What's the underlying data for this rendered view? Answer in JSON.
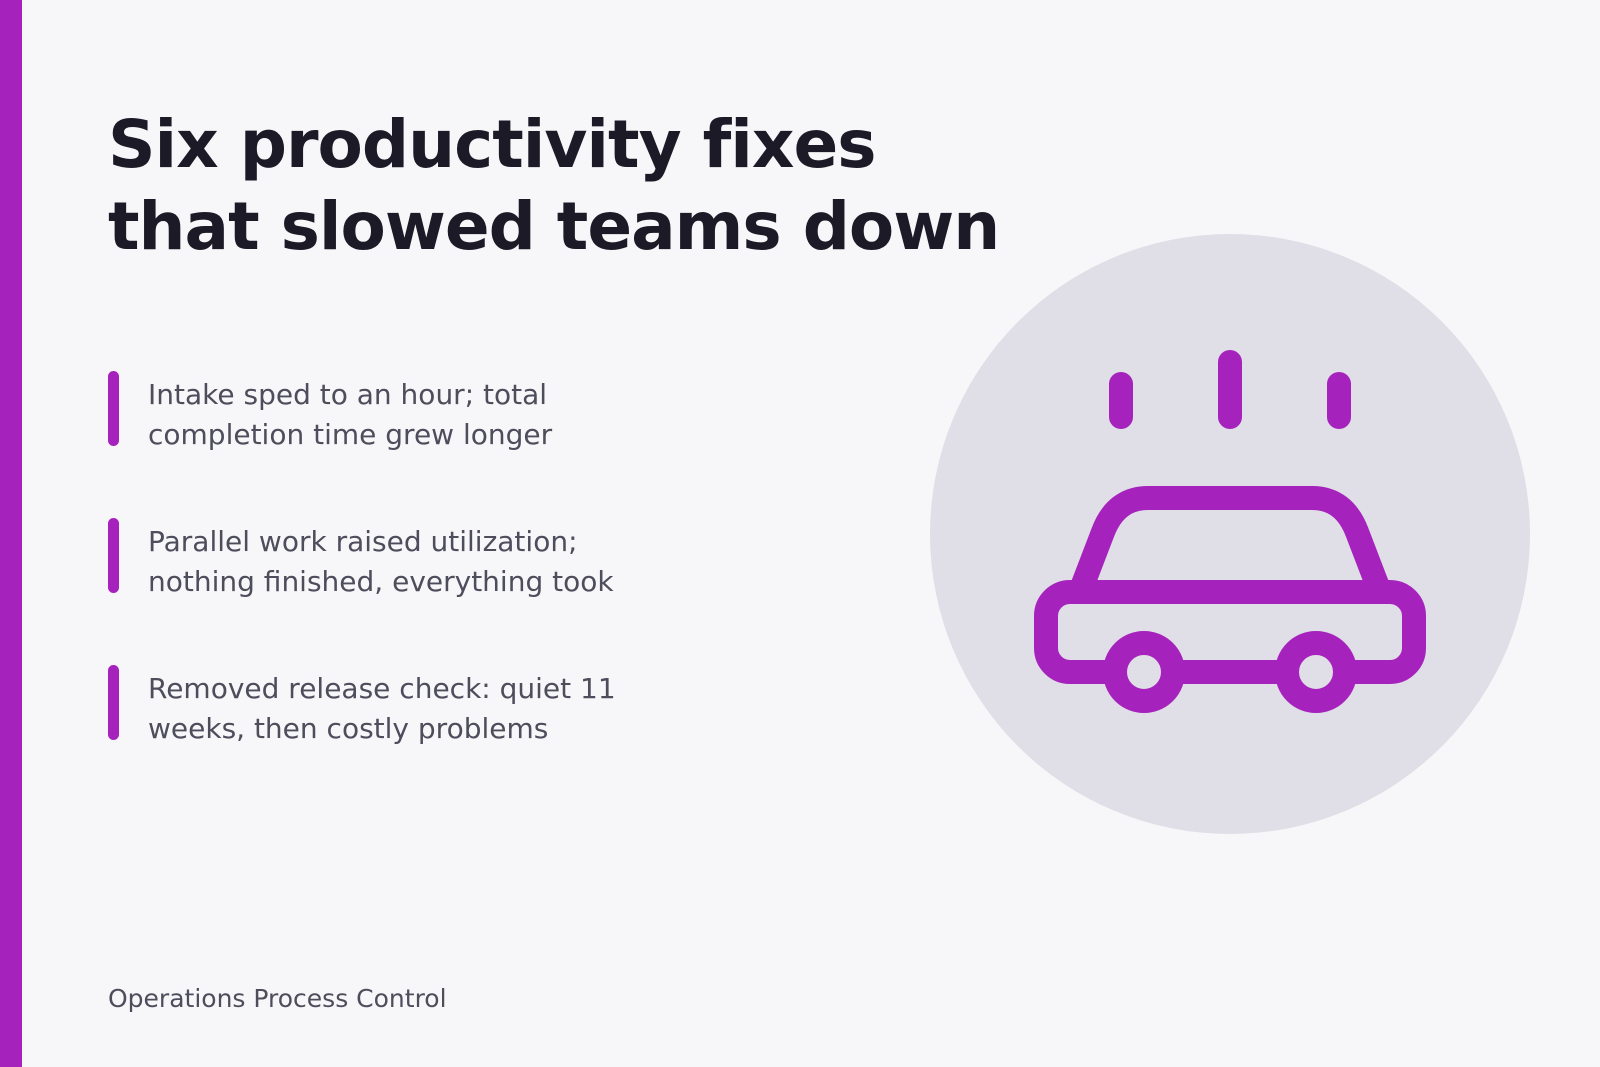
{
  "slide": {
    "title_lines": [
      "Six productivity fixes",
      "that slowed teams down"
    ],
    "points": [
      {
        "lines": [
          "Intake sped to an hour; total",
          "completion time grew longer"
        ]
      },
      {
        "lines": [
          "Parallel work raised utilization;",
          "nothing finished, everything took"
        ]
      },
      {
        "lines": [
          "Removed release check: quiet 11",
          "weeks, then costly problems"
        ]
      }
    ],
    "footer": "Operations Process Control",
    "illustration_icon": "overheating-car-icon"
  },
  "colors": {
    "accent": "#a622bd",
    "background": "#f7f7f9",
    "circle": "#e0dee6",
    "title": "#1b1a26",
    "body_text": "#4e4d5c"
  }
}
